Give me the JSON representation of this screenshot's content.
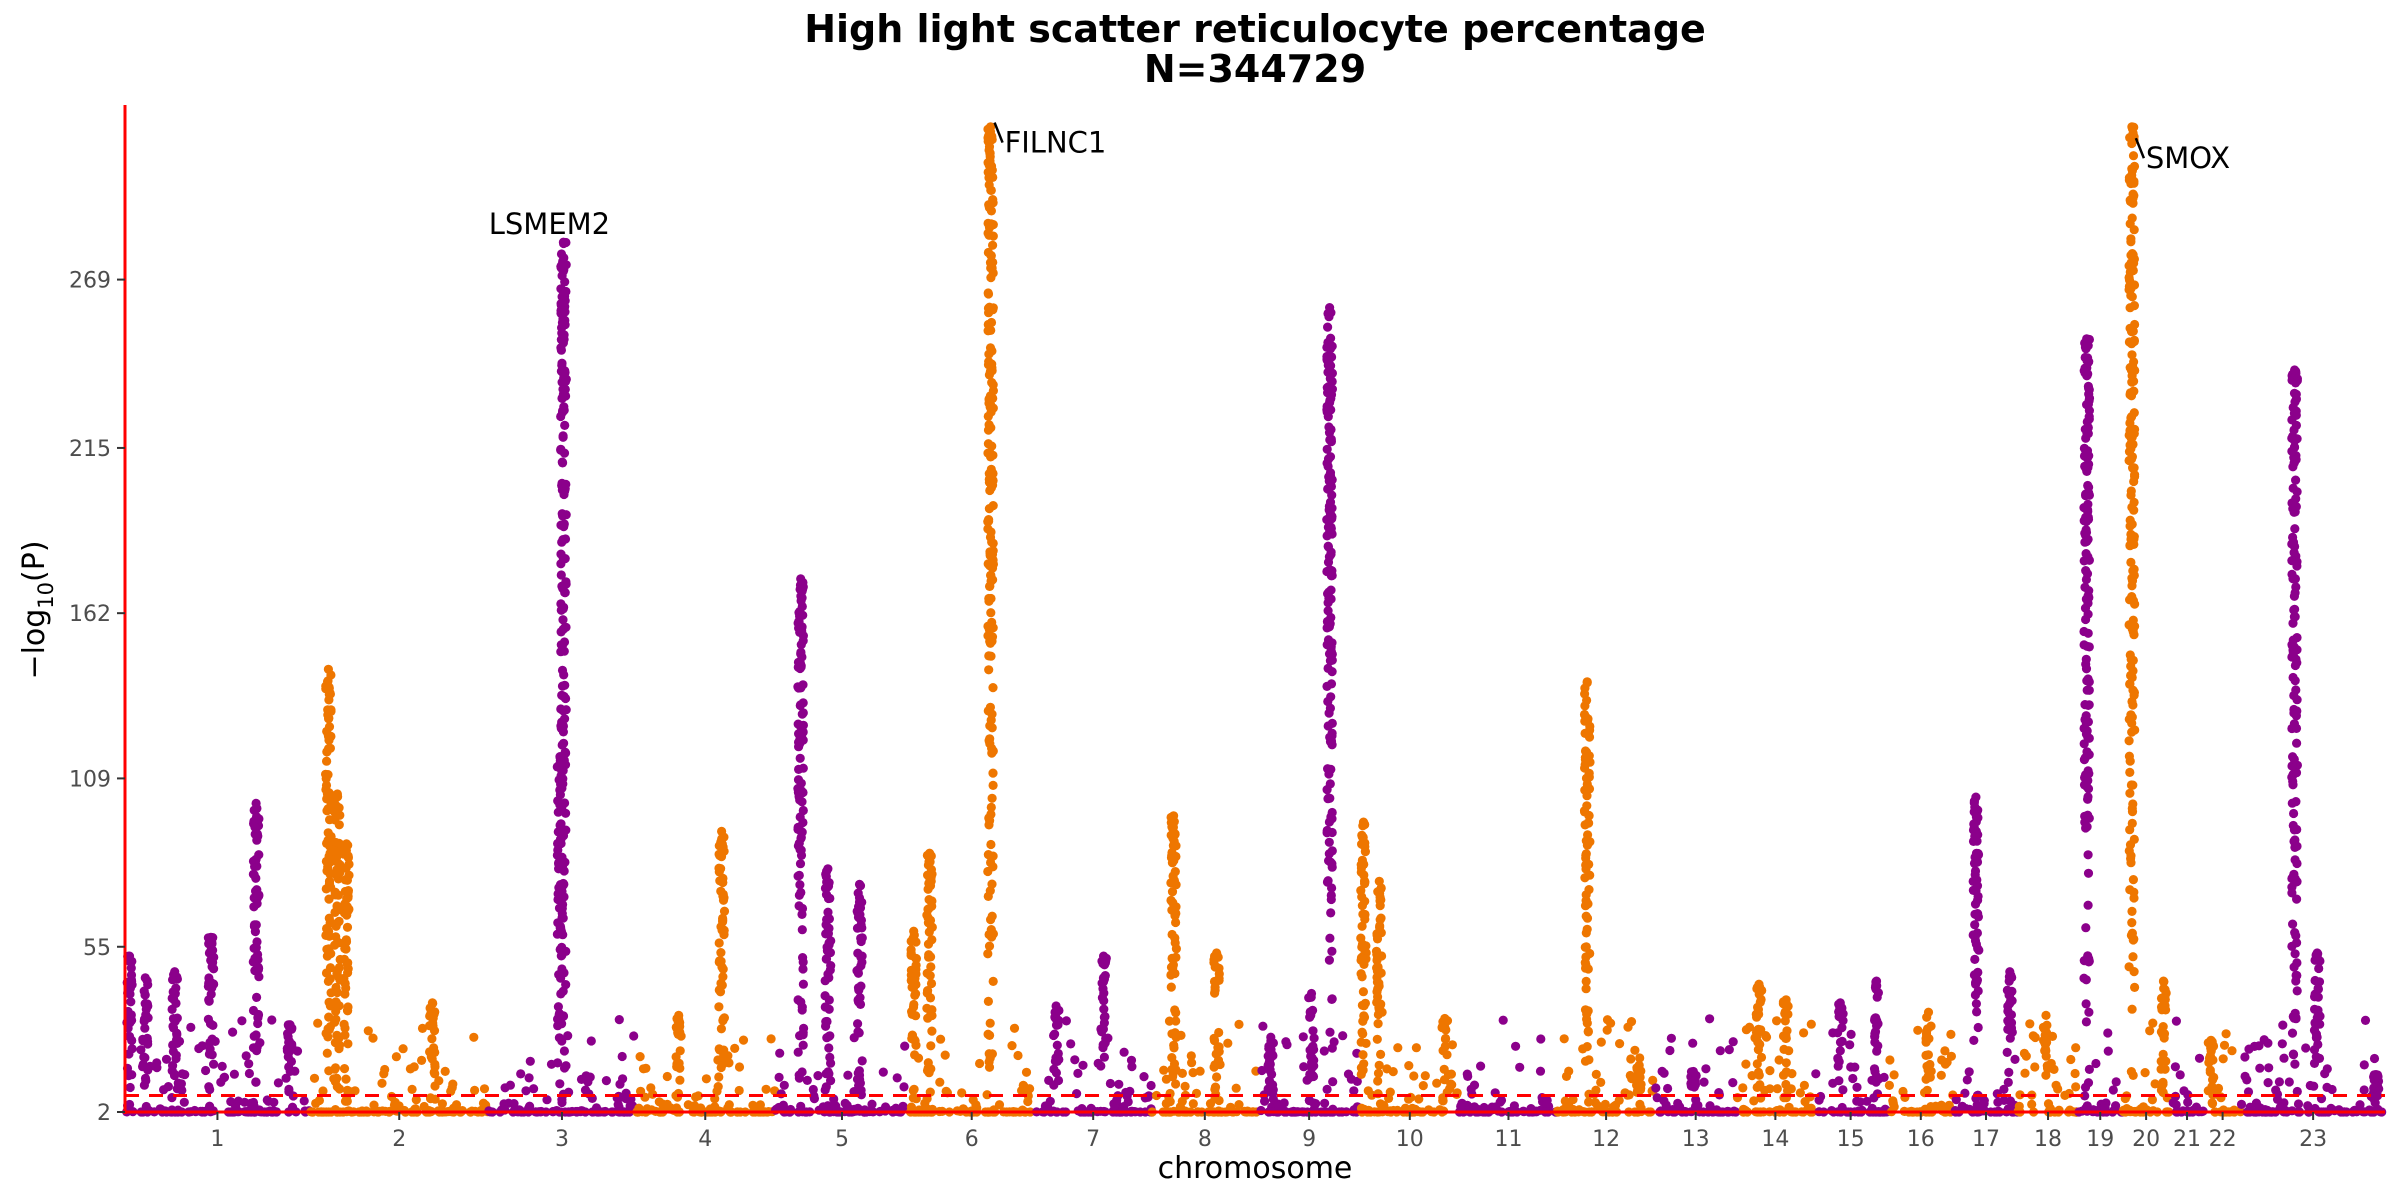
{
  "chart_data": {
    "type": "scatter",
    "title": "High light scatter reticulocyte percentage",
    "subtitle": "N=344729",
    "xlabel": "chromosome",
    "ylabel": "−log10(P)",
    "ylabel_main": "−log",
    "ylabel_sub": "10",
    "ylabel_paren": "(P)",
    "yticks": [
      2,
      55,
      109,
      162,
      215,
      269
    ],
    "ylim": [
      2,
      325
    ],
    "significance_line": 7.3,
    "grid": false,
    "colors": {
      "odd": "#8b008b",
      "even": "#ee7600",
      "axis": "#ff0000",
      "threshold": "#ff0000"
    },
    "chromosomes": [
      {
        "label": "1",
        "start": 0.0,
        "end": 8.18,
        "color": "odd"
      },
      {
        "label": "2",
        "start": 8.18,
        "end": 16.09,
        "color": "even"
      },
      {
        "label": "3",
        "start": 16.09,
        "end": 22.58,
        "color": "odd"
      },
      {
        "label": "4",
        "start": 22.58,
        "end": 28.77,
        "color": "even"
      },
      {
        "label": "5",
        "start": 28.77,
        "end": 34.68,
        "color": "odd"
      },
      {
        "label": "6",
        "start": 34.68,
        "end": 40.25,
        "color": "even"
      },
      {
        "label": "7",
        "start": 40.25,
        "end": 45.43,
        "color": "odd"
      },
      {
        "label": "8",
        "start": 45.43,
        "end": 50.13,
        "color": "even"
      },
      {
        "label": "9",
        "start": 50.13,
        "end": 54.66,
        "color": "odd"
      },
      {
        "label": "10",
        "start": 54.66,
        "end": 59.04,
        "color": "even"
      },
      {
        "label": "11",
        "start": 59.04,
        "end": 63.39,
        "color": "odd"
      },
      {
        "label": "12",
        "start": 63.39,
        "end": 67.68,
        "color": "even"
      },
      {
        "label": "13",
        "start": 67.68,
        "end": 71.32,
        "color": "odd"
      },
      {
        "label": "14",
        "start": 71.32,
        "end": 74.73,
        "color": "even"
      },
      {
        "label": "15",
        "start": 74.73,
        "end": 77.98,
        "color": "odd"
      },
      {
        "label": "16",
        "start": 77.98,
        "end": 80.94,
        "color": "even"
      },
      {
        "label": "17",
        "start": 80.94,
        "end": 83.75,
        "color": "odd"
      },
      {
        "label": "18",
        "start": 83.75,
        "end": 86.43,
        "color": "even"
      },
      {
        "label": "19",
        "start": 86.43,
        "end": 88.37,
        "color": "odd"
      },
      {
        "label": "20",
        "start": 88.37,
        "end": 90.49,
        "color": "even"
      },
      {
        "label": "21",
        "start": 90.49,
        "end": 91.99,
        "color": "odd"
      },
      {
        "label": "22",
        "start": 91.99,
        "end": 93.64,
        "color": "even"
      },
      {
        "label": "23",
        "start": 93.64,
        "end": 100.0,
        "color": "odd"
      }
    ],
    "peaks": [
      {
        "pos": 0.2,
        "p": 52
      },
      {
        "pos": 0.9,
        "p": 45
      },
      {
        "pos": 2.2,
        "p": 47
      },
      {
        "pos": 3.8,
        "p": 58
      },
      {
        "pos": 5.8,
        "p": 101
      },
      {
        "pos": 7.3,
        "p": 30
      },
      {
        "pos": 9.0,
        "p": 144
      },
      {
        "pos": 9.4,
        "p": 104
      },
      {
        "pos": 9.8,
        "p": 88
      },
      {
        "pos": 13.6,
        "p": 37
      },
      {
        "pos": 19.4,
        "p": 281
      },
      {
        "pos": 19.25,
        "p": 116
      },
      {
        "pos": 24.5,
        "p": 33
      },
      {
        "pos": 26.4,
        "p": 92
      },
      {
        "pos": 29.9,
        "p": 173
      },
      {
        "pos": 31.1,
        "p": 80
      },
      {
        "pos": 32.5,
        "p": 75
      },
      {
        "pos": 34.9,
        "p": 60
      },
      {
        "pos": 35.6,
        "p": 85
      },
      {
        "pos": 38.3,
        "p": 318
      },
      {
        "pos": 41.2,
        "p": 36
      },
      {
        "pos": 43.3,
        "p": 52
      },
      {
        "pos": 46.4,
        "p": 97
      },
      {
        "pos": 48.3,
        "p": 53
      },
      {
        "pos": 50.7,
        "p": 26
      },
      {
        "pos": 52.5,
        "p": 40
      },
      {
        "pos": 53.3,
        "p": 260
      },
      {
        "pos": 54.8,
        "p": 95
      },
      {
        "pos": 55.5,
        "p": 76
      },
      {
        "pos": 58.4,
        "p": 32
      },
      {
        "pos": 64.7,
        "p": 140
      },
      {
        "pos": 67.0,
        "p": 17
      },
      {
        "pos": 69.4,
        "p": 15
      },
      {
        "pos": 72.3,
        "p": 43
      },
      {
        "pos": 73.5,
        "p": 38
      },
      {
        "pos": 75.9,
        "p": 37
      },
      {
        "pos": 77.5,
        "p": 44
      },
      {
        "pos": 79.8,
        "p": 34
      },
      {
        "pos": 81.9,
        "p": 103
      },
      {
        "pos": 83.4,
        "p": 47
      },
      {
        "pos": 85.0,
        "p": 33
      },
      {
        "pos": 86.8,
        "p": 250
      },
      {
        "pos": 88.8,
        "p": 318
      },
      {
        "pos": 90.2,
        "p": 44
      },
      {
        "pos": 92.3,
        "p": 25
      },
      {
        "pos": 96.0,
        "p": 240
      },
      {
        "pos": 97.0,
        "p": 53
      },
      {
        "pos": 99.6,
        "p": 14
      }
    ],
    "annotations": [
      {
        "label": "LSMEM2",
        "pos": 19.4,
        "p": 281,
        "side": "above"
      },
      {
        "label": "FILNC1",
        "pos": 38.3,
        "p": 320,
        "side": "right"
      },
      {
        "label": "SMOX",
        "pos": 88.8,
        "p": 315,
        "side": "right"
      }
    ]
  }
}
